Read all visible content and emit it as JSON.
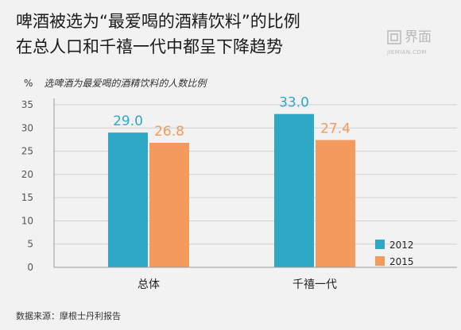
{
  "header": {
    "title_line1": "啤酒被选为“最爱喝的酒精饮料”的比例",
    "title_line2": "在总人口和千禧一代中都呈下降趋势",
    "logo_text": "界面",
    "logo_sub": "JIEMIAN.COM"
  },
  "footer": {
    "source": "数据来源：摩根士丹利报告"
  },
  "colors": {
    "s2012": "#2ea8c6",
    "s2015": "#f39a5c",
    "axis": "#999999",
    "grid": "#cfcfcf"
  },
  "chart_data": {
    "type": "bar",
    "title": "选啤酒为最爱喝的酒精饮料的人数比例",
    "unit": "%",
    "categories": [
      "总体",
      "千禧一代"
    ],
    "series": [
      {
        "name": "2012",
        "values": [
          29.0,
          33.0
        ],
        "labels": [
          "29.0",
          "33.0"
        ]
      },
      {
        "name": "2015",
        "values": [
          26.8,
          27.4
        ],
        "labels": [
          "26.8",
          "27.4"
        ]
      }
    ],
    "yticks": [
      0,
      5,
      10,
      15,
      20,
      25,
      30,
      35
    ],
    "ylim": [
      0,
      35
    ],
    "legend_position": "bottom-right"
  }
}
